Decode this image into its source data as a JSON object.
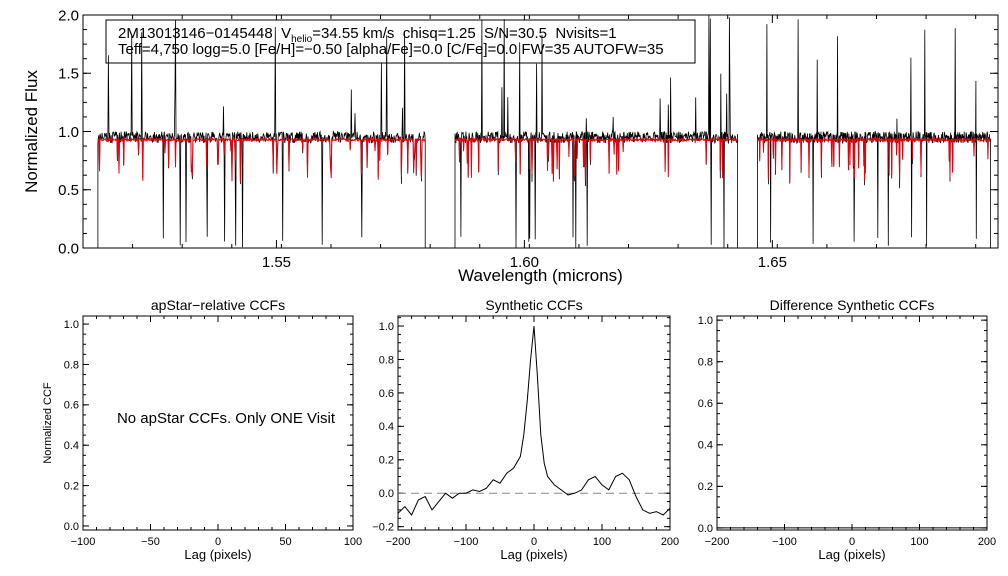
{
  "chart_data": [
    {
      "type": "line",
      "title": "",
      "xlabel": "Wavelength (microns)",
      "ylabel": "Normalized Flux",
      "xlim": [
        1.511,
        1.6955
      ],
      "ylim": [
        0.0,
        2.0
      ],
      "xticks": [
        1.55,
        1.6,
        1.65
      ],
      "xtick_labels": [
        "1.55",
        "1.60",
        "1.65"
      ],
      "yticks": [
        0.0,
        0.5,
        1.0,
        1.5,
        2.0
      ],
      "ytick_labels": [
        "0.0",
        "0.5",
        "1.0",
        "1.5",
        "2.0"
      ],
      "chips": [
        [
          1.514,
          1.58
        ],
        [
          1.586,
          1.643
        ],
        [
          1.647,
          1.694
        ]
      ],
      "series": [
        {
          "name": "observed",
          "color": "#000000",
          "level": 0.95
        },
        {
          "name": "model",
          "color": "#e8000b",
          "level": 0.93
        }
      ],
      "annotation": {
        "star_id": "2M13013146−0145448",
        "v_prefix": "V",
        "v_sub": "helio",
        "v_value": "=34.55 km/s",
        "chisq": "chisq=1.25",
        "snr": "S/N=30.5",
        "nvisits": "Nvisits=1",
        "params": "Teff=4,750 logg=5.0 [Fe/H]=−0.50 [alpha/Fe]=0.0 [C/Fe]=0.0 FW=35 AUTOFW=35"
      }
    },
    {
      "type": "line",
      "title": "apStar−relative CCFs",
      "xlabel": "Lag (pixels)",
      "ylabel": "Normalized CCF",
      "xlim": [
        -100,
        100
      ],
      "ylim": [
        -0.02,
        1.04
      ],
      "xticks": [
        -100,
        -50,
        0,
        50,
        100
      ],
      "xtick_labels": [
        "−100",
        "−50",
        "0",
        "50",
        "100"
      ],
      "yticks": [
        0.0,
        0.2,
        0.4,
        0.6,
        0.8,
        1.0
      ],
      "ytick_labels": [
        "0.0",
        "0.2",
        "0.4",
        "0.6",
        "0.8",
        "1.0"
      ],
      "message": "No apStar CCFs.  Only ONE Visit"
    },
    {
      "type": "line",
      "title": "Synthetic CCFs",
      "xlabel": "Lag (pixels)",
      "ylabel": "",
      "xlim": [
        -200,
        200
      ],
      "ylim": [
        -0.22,
        1.06
      ],
      "xticks": [
        -200,
        -100,
        0,
        100,
        200
      ],
      "xtick_labels": [
        "−200",
        "−100",
        "0",
        "100",
        "200"
      ],
      "yticks": [
        -0.2,
        0.0,
        0.2,
        0.4,
        0.6,
        0.8,
        1.0
      ],
      "ytick_labels": [
        "−0.2",
        "0.0",
        "0.2",
        "0.4",
        "0.6",
        "0.8",
        "1.0"
      ],
      "baseline": 0.0,
      "series": [
        {
          "name": "synthetic CCF",
          "x": [
            -200,
            -190,
            -180,
            -170,
            -160,
            -150,
            -140,
            -130,
            -120,
            -110,
            -100,
            -90,
            -80,
            -70,
            -60,
            -50,
            -40,
            -30,
            -20,
            -15,
            -10,
            -5,
            0,
            5,
            10,
            15,
            20,
            30,
            40,
            50,
            60,
            70,
            80,
            90,
            100,
            110,
            120,
            130,
            140,
            150,
            160,
            170,
            180,
            190,
            200
          ],
          "y": [
            -0.12,
            -0.08,
            -0.13,
            -0.04,
            -0.02,
            -0.1,
            -0.05,
            0.0,
            -0.03,
            0.0,
            0.0,
            0.02,
            0.01,
            0.03,
            0.08,
            0.06,
            0.12,
            0.15,
            0.22,
            0.35,
            0.55,
            0.8,
            1.0,
            0.7,
            0.35,
            0.18,
            0.1,
            0.05,
            0.02,
            -0.01,
            0.0,
            0.02,
            0.08,
            0.1,
            0.05,
            0.02,
            0.1,
            0.12,
            0.08,
            -0.02,
            -0.1,
            -0.12,
            -0.11,
            -0.13,
            -0.09
          ]
        }
      ]
    },
    {
      "type": "line",
      "title": "Difference Synthetic CCFs",
      "xlabel": "Lag (pixels)",
      "ylabel": "",
      "xlim": [
        -200,
        200
      ],
      "ylim": [
        -0.01,
        1.02
      ],
      "xticks": [
        -200,
        -100,
        0,
        100,
        200
      ],
      "xtick_labels": [
        "−200",
        "−100",
        "0",
        "100",
        "200"
      ],
      "yticks": [
        0.0,
        0.2,
        0.4,
        0.6,
        0.8,
        1.0
      ],
      "ytick_labels": [
        "0.0",
        "0.2",
        "0.4",
        "0.6",
        "0.8",
        "1.0"
      ],
      "series": [
        {
          "name": "difference",
          "x": [
            -200,
            200
          ],
          "y": [
            0.0,
            0.0
          ]
        }
      ]
    }
  ]
}
